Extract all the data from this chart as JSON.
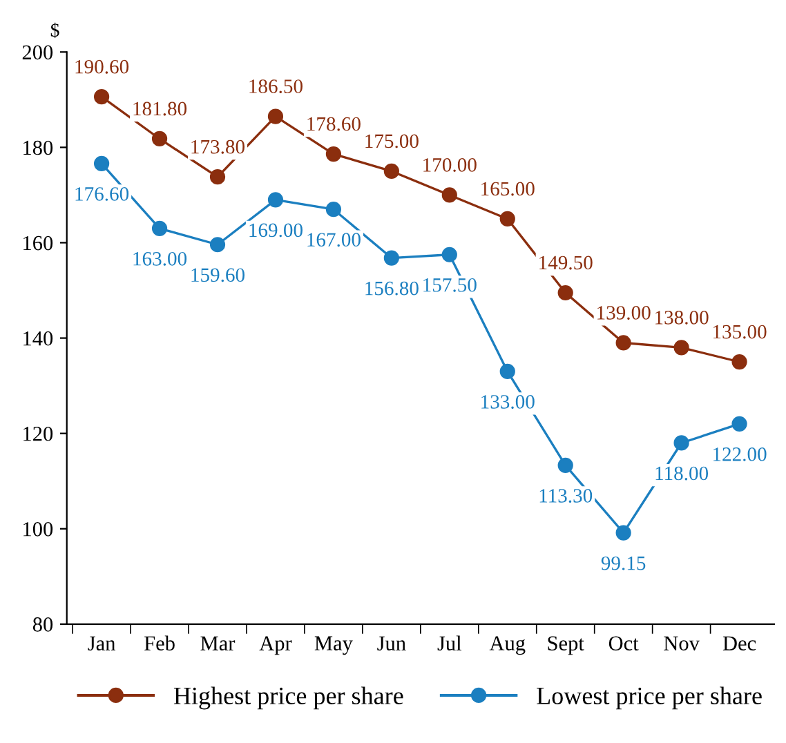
{
  "chart_data": {
    "type": "line",
    "ylabel": "$",
    "categories": [
      "Jan",
      "Feb",
      "Mar",
      "Apr",
      "May",
      "Jun",
      "Jul",
      "Aug",
      "Sept",
      "Oct",
      "Nov",
      "Dec"
    ],
    "ylim": [
      80,
      200
    ],
    "yticks": [
      80,
      100,
      120,
      140,
      160,
      180,
      200
    ],
    "grid": false,
    "legend": "bottom",
    "marker": "circle",
    "line_style": "solid",
    "series": [
      {
        "name": "Highest price per share",
        "color": "#8b2e0e",
        "values": [
          190.6,
          181.8,
          173.8,
          186.5,
          178.6,
          175.0,
          170.0,
          165.0,
          149.5,
          139.0,
          138.0,
          135.0
        ],
        "value_labels": [
          "190.60",
          "181.80",
          "173.80",
          "186.50",
          "178.60",
          "175.00",
          "170.00",
          "165.00",
          "149.50",
          "139.00",
          "138.00",
          "135.00"
        ]
      },
      {
        "name": "Lowest price per share",
        "color": "#1b7fc0",
        "values": [
          176.6,
          163.0,
          159.6,
          169.0,
          167.0,
          156.8,
          157.5,
          133.0,
          113.3,
          99.15,
          118.0,
          122.0
        ],
        "value_labels": [
          "176.60",
          "163.00",
          "159.60",
          "169.00",
          "167.00",
          "156.80",
          "157.50",
          "133.00",
          "113.30",
          "99.15",
          "118.00",
          "122.00"
        ]
      }
    ]
  }
}
